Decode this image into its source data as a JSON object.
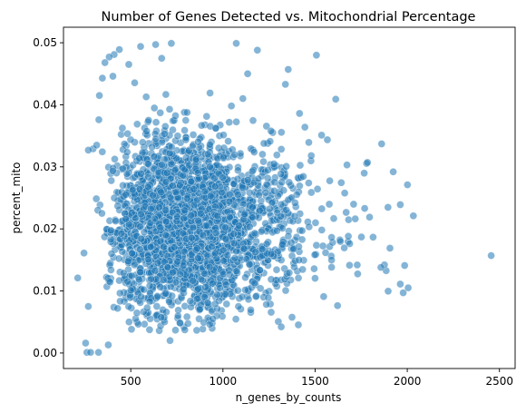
{
  "chart_data": {
    "type": "scatter",
    "title": "Number of Genes Detected vs. Mitochondrial Percentage",
    "xlabel": "n_genes_by_counts",
    "ylabel": "percent_mito",
    "xlim": [
      135,
      2585
    ],
    "ylim": [
      -0.0025,
      0.0525
    ],
    "xticks": [
      500,
      1000,
      1500,
      2000,
      2500
    ],
    "yticks": [
      0.0,
      0.01,
      0.02,
      0.03,
      0.04,
      0.05
    ],
    "xtick_labels": [
      "500",
      "1000",
      "1500",
      "2000",
      "2500"
    ],
    "ytick_labels": [
      "0.00",
      "0.01",
      "0.02",
      "0.03",
      "0.04",
      "0.05"
    ],
    "grid": false,
    "legend": "none",
    "point_color": "#1f77b4",
    "point_edge_color": "#ffffff",
    "point_alpha": 0.55,
    "sample_size": 2700,
    "distribution": {
      "x_lognormal_median": 820,
      "x_lognormal_sigma": 0.3,
      "x_range": [
        212,
        2455
      ],
      "y_range": [
        0.0,
        0.05
      ]
    },
    "points": [
      [
        2455,
        0.0157
      ],
      [
        2033,
        0.0221
      ],
      [
        2005,
        0.0105
      ],
      [
        2001,
        0.0271
      ],
      [
        1962,
        0.0239
      ],
      [
        1986,
        0.0141
      ],
      [
        1978,
        0.0097
      ],
      [
        1962,
        0.0111
      ],
      [
        1924,
        0.0292
      ],
      [
        1906,
        0.0169
      ],
      [
        1876,
        0.0142
      ],
      [
        1857,
        0.0138
      ],
      [
        1861,
        0.0337
      ],
      [
        1784,
        0.0307
      ],
      [
        1751,
        0.0187
      ],
      [
        1769,
        0.0233
      ],
      [
        1612,
        0.0409
      ],
      [
        1507,
        0.048
      ],
      [
        1354,
        0.0457
      ],
      [
        1339,
        0.0433
      ],
      [
        1072,
        0.0499
      ],
      [
        1134,
        0.045
      ],
      [
        1187,
        0.0488
      ],
      [
        1108,
        0.041
      ],
      [
        635,
        0.0497
      ],
      [
        553,
        0.0494
      ],
      [
        720,
        0.0499
      ],
      [
        668,
        0.0475
      ],
      [
        438,
        0.0489
      ],
      [
        410,
        0.0481
      ],
      [
        403,
        0.0446
      ],
      [
        383,
        0.0477
      ],
      [
        360,
        0.0468
      ],
      [
        489,
        0.0465
      ],
      [
        346,
        0.0443
      ],
      [
        330,
        0.0415
      ],
      [
        255,
        0.0016
      ],
      [
        262,
        0.0001
      ],
      [
        282,
        0.0001
      ],
      [
        325,
        0.0001
      ],
      [
        378,
        0.0013
      ],
      [
        713,
        0.002
      ],
      [
        212,
        0.0121
      ],
      [
        246,
        0.0161
      ],
      [
        270,
        0.0075
      ],
      [
        296,
        0.0329
      ],
      [
        315,
        0.0335
      ],
      [
        270,
        0.0327
      ],
      [
        327,
        0.0376
      ]
    ]
  }
}
